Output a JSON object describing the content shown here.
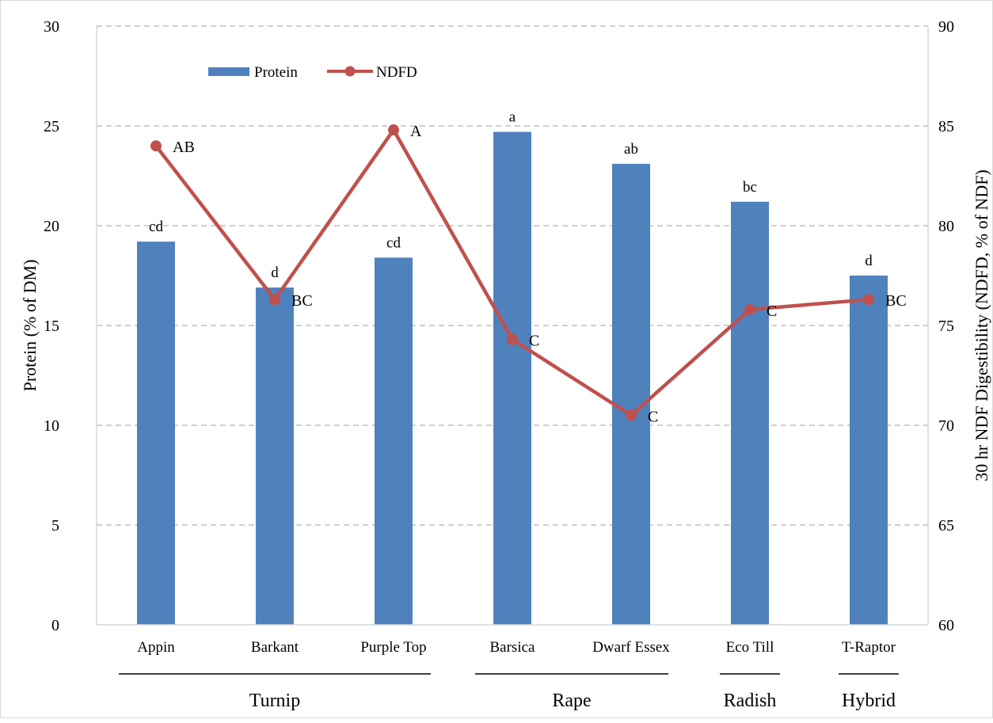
{
  "chart_data": {
    "type": "bar",
    "categories": [
      "Appin",
      "Barkant",
      "Purple Top",
      "Barsica",
      "Dwarf Essex",
      "Eco Till",
      "T-Raptor"
    ],
    "groups": [
      {
        "label": "Turnip",
        "categories": [
          "Appin",
          "Barkant",
          "Purple Top"
        ]
      },
      {
        "label": "Rape",
        "categories": [
          "Barsica",
          "Dwarf Essex"
        ]
      },
      {
        "label": "Radish",
        "categories": [
          "Eco Till"
        ]
      },
      {
        "label": "Hybrid",
        "categories": [
          "T-Raptor"
        ]
      }
    ],
    "series": [
      {
        "name": "Protein",
        "type": "bar",
        "axis": "left",
        "color": "#4f81bd",
        "values": [
          19.2,
          16.9,
          18.4,
          24.7,
          23.1,
          21.2,
          17.5
        ],
        "labels": [
          "cd",
          "d",
          "cd",
          "a",
          "ab",
          "bc",
          "d"
        ]
      },
      {
        "name": "NDFD",
        "type": "line",
        "axis": "right",
        "color": "#c0504d",
        "values": [
          84.0,
          76.3,
          84.8,
          74.3,
          70.5,
          75.8,
          76.3
        ],
        "labels": [
          "AB",
          "BC",
          "A",
          "C",
          "C",
          "C",
          "BC"
        ]
      }
    ],
    "ylabel": "Protein (% of DM)",
    "y2label": "30 hr NDF Digestibility (NDFD, % of NDF)",
    "ylim": [
      0,
      30
    ],
    "y2lim": [
      60,
      90
    ],
    "yticks": [
      "0",
      "5",
      "10",
      "15",
      "20",
      "25",
      "30"
    ],
    "y2ticks": [
      "60",
      "65",
      "70",
      "75",
      "80",
      "85",
      "90"
    ],
    "grid": true,
    "legend_position": "top-left"
  }
}
